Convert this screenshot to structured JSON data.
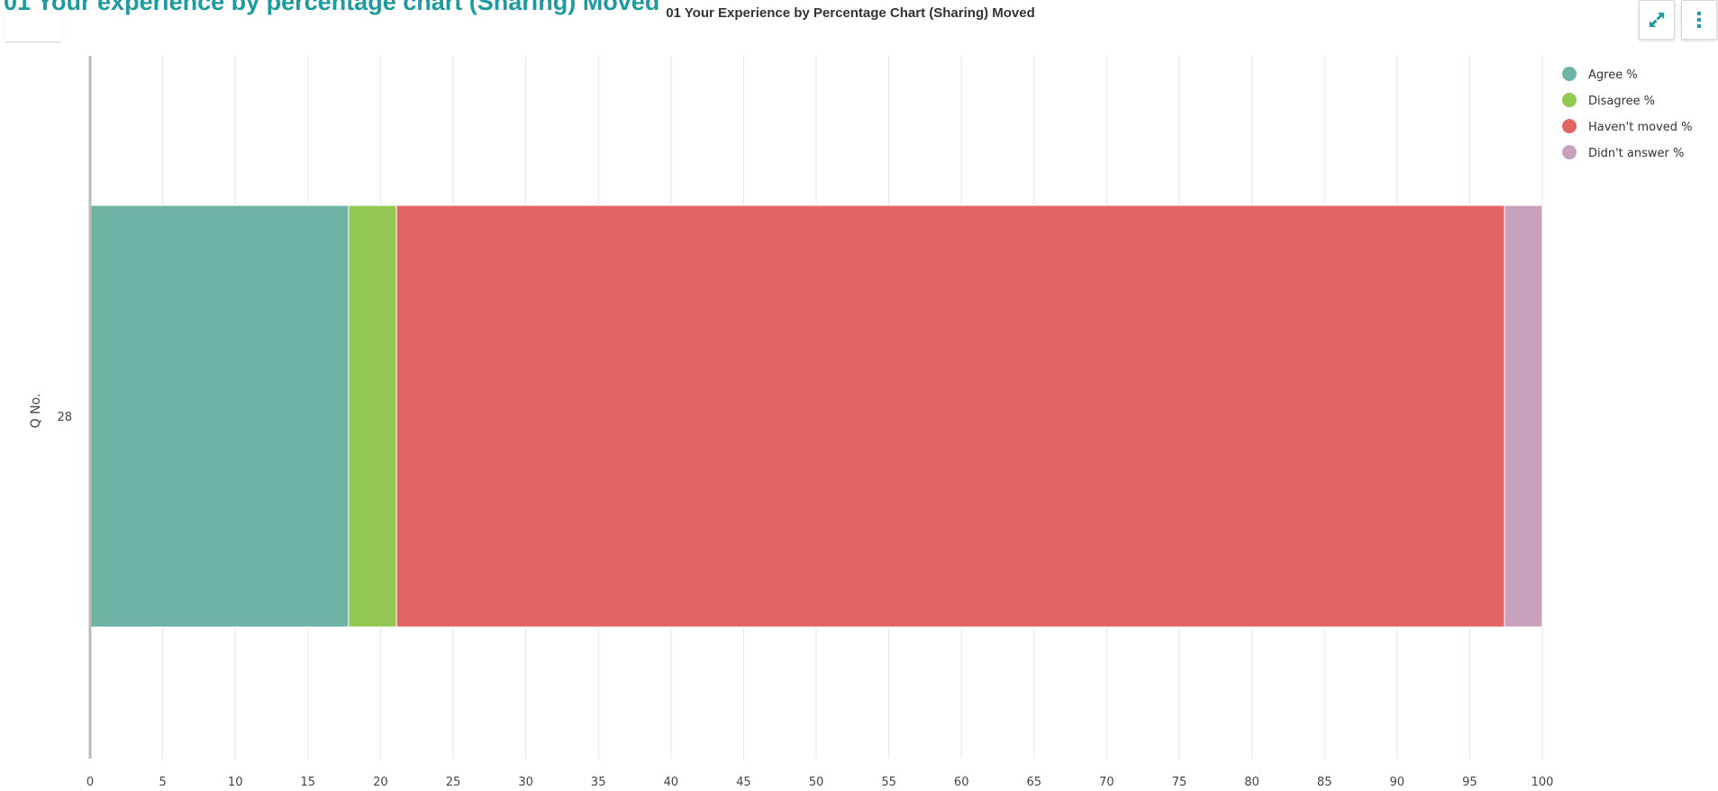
{
  "page": {
    "heading": "01 Your experience by percentage chart (Sharing) Moved"
  },
  "toolbar": {
    "expand_icon": "expand-arrows-icon",
    "menu_icon": "vertical-dots-icon"
  },
  "chart_data": {
    "type": "bar",
    "orientation": "horizontal",
    "stacked": true,
    "title": "01 Your Experience by Percentage Chart (Sharing) Moved",
    "xlabel": "",
    "ylabel": "Q No.",
    "xlim": [
      0,
      100
    ],
    "xticks": [
      0,
      5,
      10,
      15,
      20,
      25,
      30,
      35,
      40,
      45,
      50,
      55,
      60,
      65,
      70,
      75,
      80,
      85,
      90,
      95,
      100
    ],
    "grid": true,
    "legend": "top-right",
    "categories": [
      "28"
    ],
    "series": [
      {
        "name": "Agree %",
        "color": "#6fb3a5",
        "values": [
          17.8
        ]
      },
      {
        "name": "Disagree %",
        "color": "#93c852",
        "values": [
          3.3
        ]
      },
      {
        "name": "Haven't moved %",
        "color": "#e46464",
        "values": [
          76.3
        ]
      },
      {
        "name": "Didn't answer %",
        "color": "#c8a2bd",
        "values": [
          2.6
        ]
      }
    ]
  }
}
